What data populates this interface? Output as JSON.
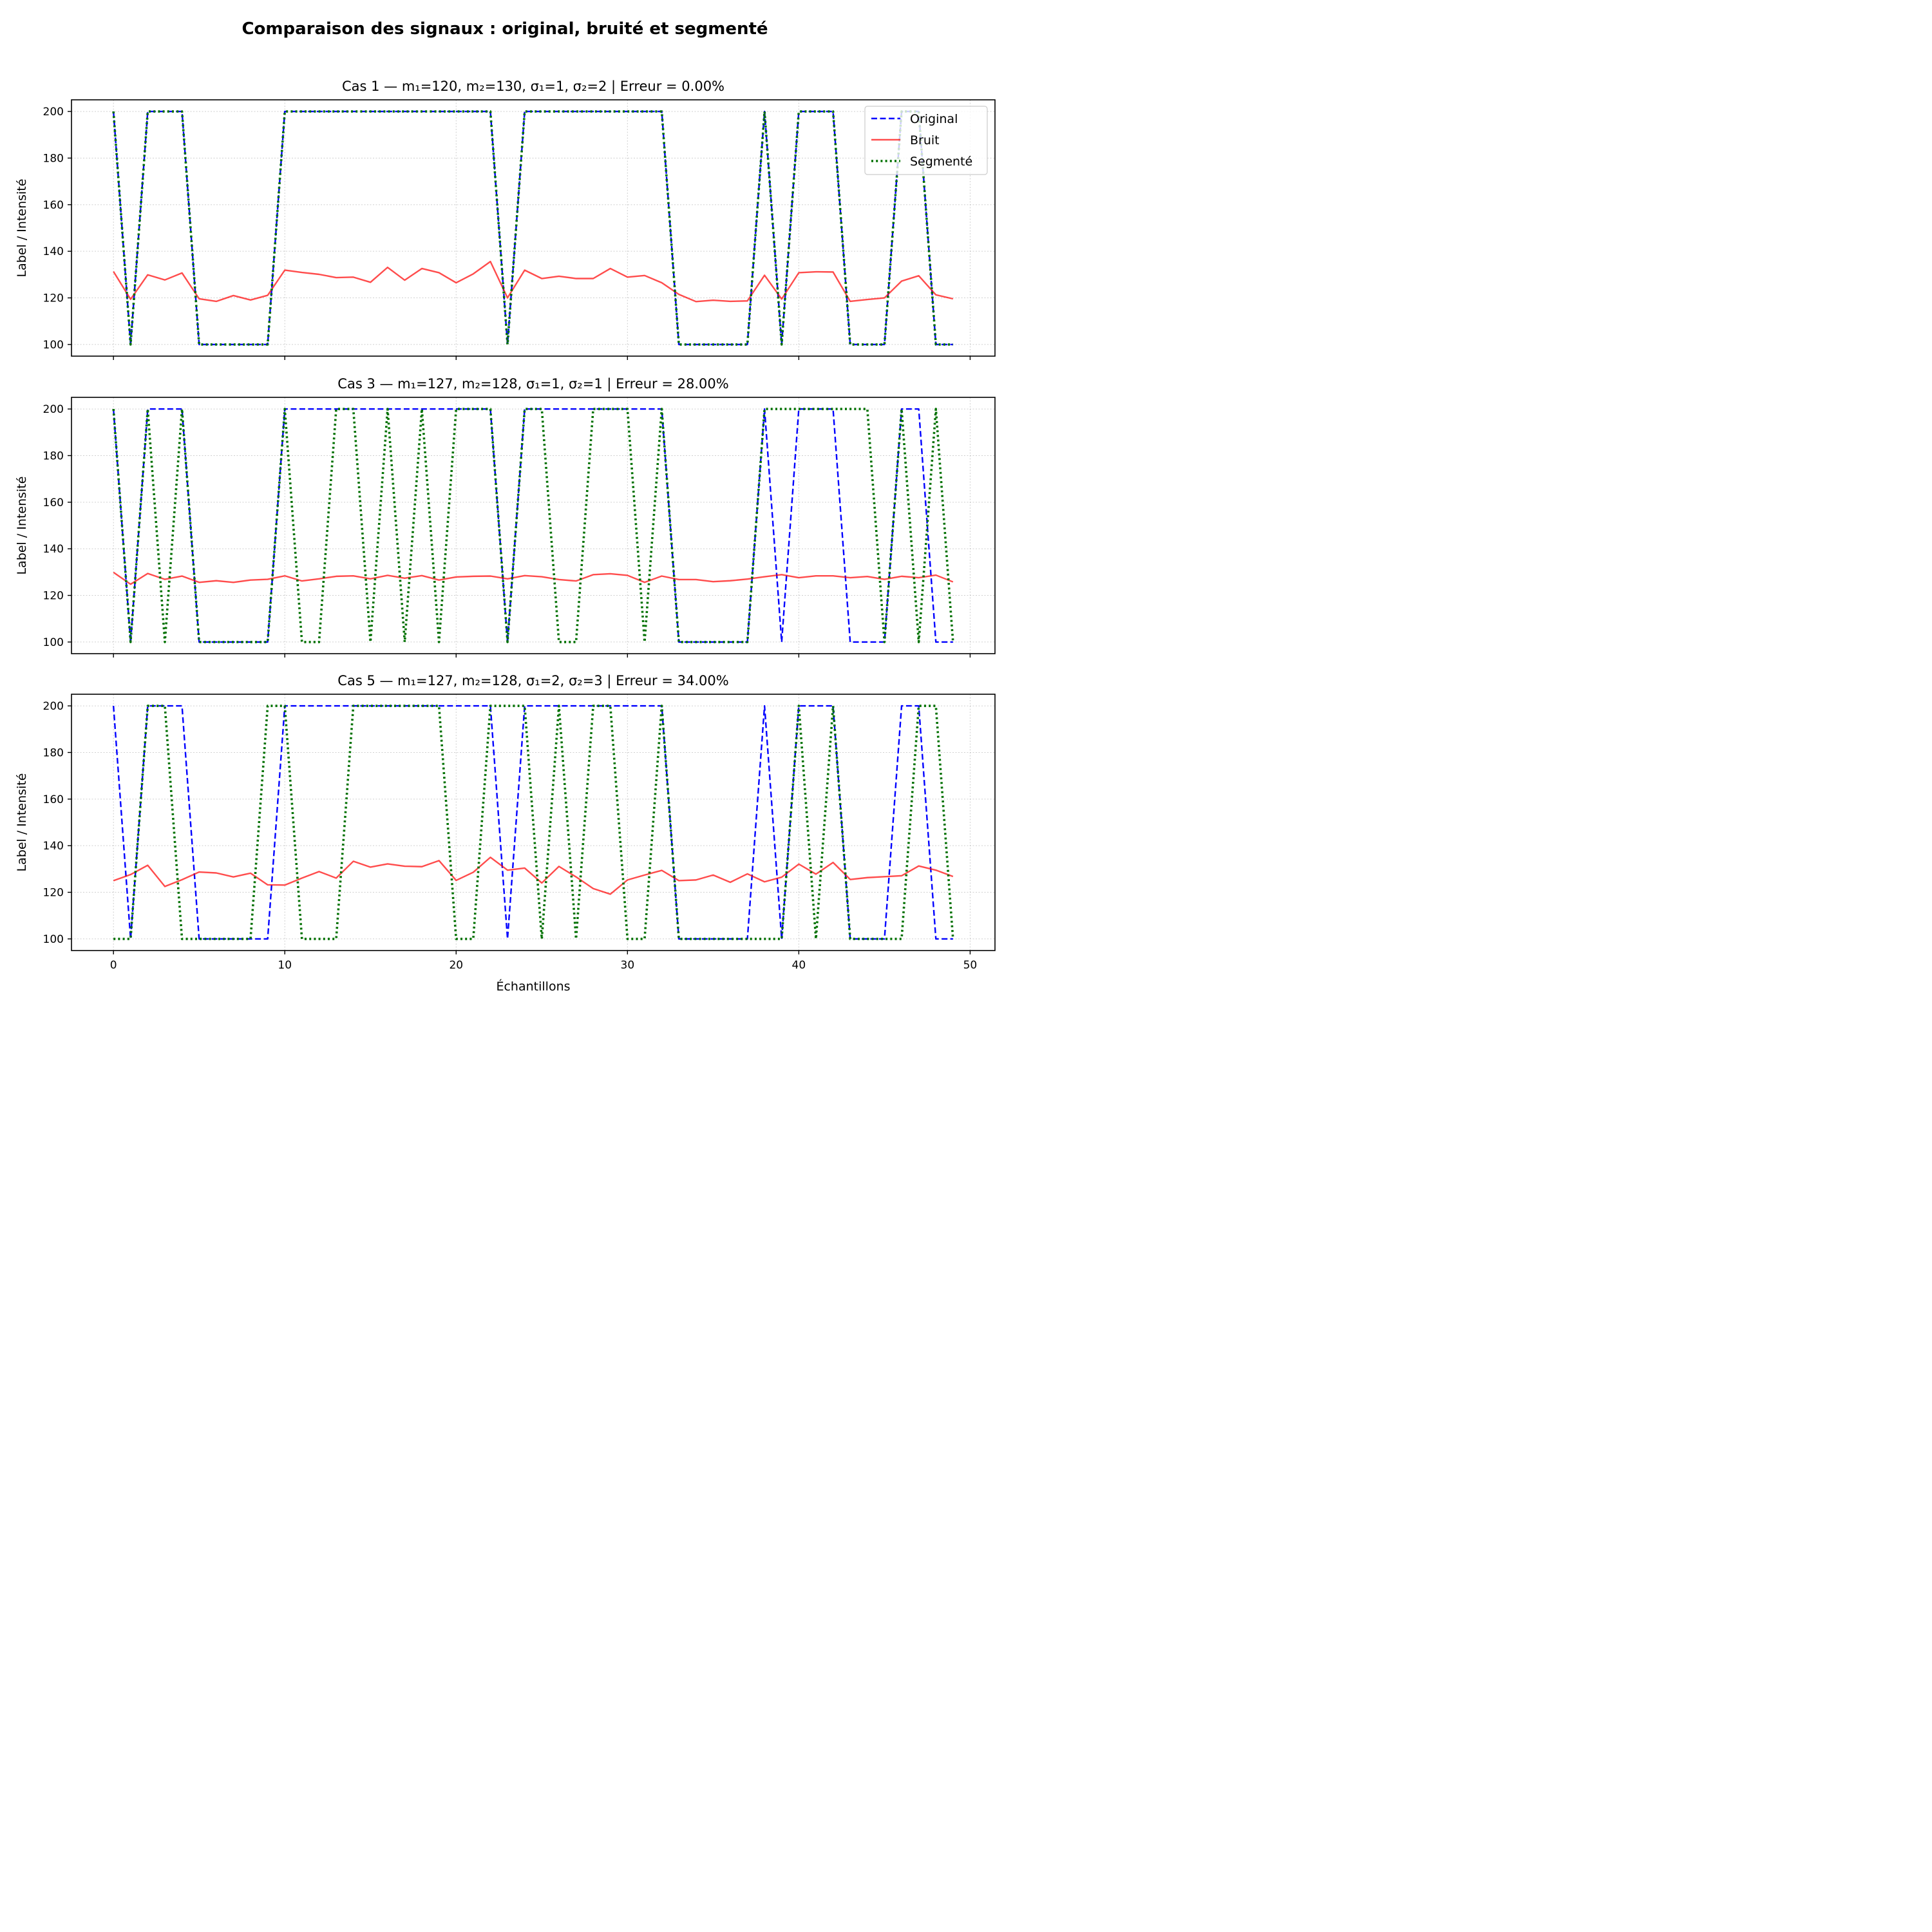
{
  "figure": {
    "title": "Comparaison des signaux : original, bruité et segmenté",
    "xlabel": "Échantillons"
  },
  "colors": {
    "original": "#0000ff",
    "bruit": "#ff0000",
    "segmente": "#007000",
    "grid": "#b0b0b0"
  },
  "chart_data": [
    {
      "type": "line",
      "title": "Cas 1 — m₁=120, m₂=130, σ₁=1, σ₂=2  |  Erreur = 0.00%",
      "xlabel": "",
      "ylabel": "Label / Intensité",
      "xlim": [
        -2.45,
        51.45
      ],
      "ylim": [
        95,
        205
      ],
      "xticks": [
        0,
        10,
        20,
        30,
        40,
        50
      ],
      "yticks": [
        100,
        120,
        140,
        160,
        180,
        200
      ],
      "grid": true,
      "legend": "top-right",
      "x": [
        0,
        1,
        2,
        3,
        4,
        5,
        6,
        7,
        8,
        9,
        10,
        11,
        12,
        13,
        14,
        15,
        16,
        17,
        18,
        19,
        20,
        21,
        22,
        23,
        24,
        25,
        26,
        27,
        28,
        29,
        30,
        31,
        32,
        33,
        34,
        35,
        36,
        37,
        38,
        39,
        40,
        41,
        42,
        43,
        44,
        45,
        46,
        47,
        48,
        49
      ],
      "series": [
        {
          "name": "Original",
          "style": "dashed",
          "values": [
            200,
            100,
            200,
            200,
            200,
            100,
            100,
            100,
            100,
            100,
            200,
            200,
            200,
            200,
            200,
            200,
            200,
            200,
            200,
            200,
            200,
            200,
            200,
            100,
            200,
            200,
            200,
            200,
            200,
            200,
            200,
            200,
            200,
            100,
            100,
            100,
            100,
            100,
            200,
            100,
            200,
            200,
            200,
            100,
            100,
            100,
            200,
            200,
            100,
            100
          ]
        },
        {
          "name": "Bruit",
          "style": "solid",
          "values": [
            131.3,
            119.4,
            129.9,
            127.7,
            130.7,
            119.6,
            118.5,
            121.0,
            119.1,
            121.1,
            131.9,
            130.9,
            130.1,
            128.7,
            128.9,
            126.7,
            133.1,
            127.6,
            132.6,
            130.8,
            126.5,
            130.3,
            135.6,
            120.0,
            131.9,
            128.3,
            129.3,
            128.3,
            128.3,
            132.6,
            128.9,
            129.6,
            126.5,
            121.5,
            118.4,
            119.0,
            118.5,
            118.7,
            129.7,
            119.5,
            130.8,
            131.2,
            131.1,
            118.5,
            119.3,
            120.0,
            127.2,
            129.5,
            121.3,
            119.6
          ]
        },
        {
          "name": "Segmenté",
          "style": "dotted",
          "values": [
            200,
            100,
            200,
            200,
            200,
            100,
            100,
            100,
            100,
            100,
            200,
            200,
            200,
            200,
            200,
            200,
            200,
            200,
            200,
            200,
            200,
            200,
            200,
            100,
            200,
            200,
            200,
            200,
            200,
            200,
            200,
            200,
            200,
            100,
            100,
            100,
            100,
            100,
            200,
            100,
            200,
            200,
            200,
            100,
            100,
            100,
            200,
            200,
            100,
            100
          ]
        }
      ]
    },
    {
      "type": "line",
      "title": "Cas 3 — m₁=127, m₂=128, σ₁=1, σ₂=1  |  Erreur = 28.00%",
      "xlabel": "",
      "ylabel": "Label / Intensité",
      "xlim": [
        -2.45,
        51.45
      ],
      "ylim": [
        95,
        205
      ],
      "xticks": [
        0,
        10,
        20,
        30,
        40,
        50
      ],
      "yticks": [
        100,
        120,
        140,
        160,
        180,
        200
      ],
      "grid": true,
      "x": [
        0,
        1,
        2,
        3,
        4,
        5,
        6,
        7,
        8,
        9,
        10,
        11,
        12,
        13,
        14,
        15,
        16,
        17,
        18,
        19,
        20,
        21,
        22,
        23,
        24,
        25,
        26,
        27,
        28,
        29,
        30,
        31,
        32,
        33,
        34,
        35,
        36,
        37,
        38,
        39,
        40,
        41,
        42,
        43,
        44,
        45,
        46,
        47,
        48,
        49
      ],
      "series": [
        {
          "name": "Original",
          "style": "dashed",
          "values": [
            200,
            100,
            200,
            200,
            200,
            100,
            100,
            100,
            100,
            100,
            200,
            200,
            200,
            200,
            200,
            200,
            200,
            200,
            200,
            200,
            200,
            200,
            200,
            100,
            200,
            200,
            200,
            200,
            200,
            200,
            200,
            200,
            200,
            100,
            100,
            100,
            100,
            100,
            200,
            100,
            200,
            200,
            200,
            100,
            100,
            100,
            200,
            200,
            100,
            100
          ]
        },
        {
          "name": "Bruit",
          "style": "solid",
          "values": [
            129.9,
            124.8,
            129.4,
            126.9,
            128.3,
            125.6,
            126.3,
            125.6,
            126.6,
            126.9,
            128.4,
            126.2,
            127.1,
            128.2,
            128.4,
            127.1,
            128.6,
            127.4,
            128.5,
            126.6,
            127.9,
            128.2,
            128.3,
            127.1,
            128.5,
            128.0,
            126.8,
            126.2,
            128.9,
            129.3,
            128.6,
            125.6,
            128.3,
            126.8,
            126.8,
            125.9,
            126.3,
            127.0,
            128.0,
            128.9,
            127.6,
            128.4,
            128.4,
            127.6,
            128.1,
            126.9,
            128.2,
            127.6,
            128.7,
            125.8
          ]
        },
        {
          "name": "Segmenté",
          "style": "dotted",
          "values": [
            200,
            100,
            200,
            100,
            200,
            100,
            100,
            100,
            100,
            100,
            200,
            100,
            100,
            200,
            200,
            100,
            200,
            100,
            200,
            100,
            200,
            200,
            200,
            100,
            200,
            200,
            100,
            100,
            200,
            200,
            200,
            100,
            200,
            100,
            100,
            100,
            100,
            100,
            200,
            200,
            200,
            200,
            200,
            200,
            200,
            100,
            200,
            100,
            200,
            100
          ]
        }
      ]
    },
    {
      "type": "line",
      "title": "Cas 5 — m₁=127, m₂=128, σ₁=2, σ₂=3  |  Erreur = 34.00%",
      "xlabel": "Échantillons",
      "ylabel": "Label / Intensité",
      "xlim": [
        -2.45,
        51.45
      ],
      "ylim": [
        95,
        205
      ],
      "xticks": [
        0,
        10,
        20,
        30,
        40,
        50
      ],
      "yticks": [
        100,
        120,
        140,
        160,
        180,
        200
      ],
      "grid": true,
      "x": [
        0,
        1,
        2,
        3,
        4,
        5,
        6,
        7,
        8,
        9,
        10,
        11,
        12,
        13,
        14,
        15,
        16,
        17,
        18,
        19,
        20,
        21,
        22,
        23,
        24,
        25,
        26,
        27,
        28,
        29,
        30,
        31,
        32,
        33,
        34,
        35,
        36,
        37,
        38,
        39,
        40,
        41,
        42,
        43,
        44,
        45,
        46,
        47,
        48,
        49
      ],
      "series": [
        {
          "name": "Original",
          "style": "dashed",
          "values": [
            200,
            100,
            200,
            200,
            200,
            100,
            100,
            100,
            100,
            100,
            200,
            200,
            200,
            200,
            200,
            200,
            200,
            200,
            200,
            200,
            200,
            200,
            200,
            100,
            200,
            200,
            200,
            200,
            200,
            200,
            200,
            200,
            200,
            100,
            100,
            100,
            100,
            100,
            200,
            100,
            200,
            200,
            200,
            100,
            100,
            100,
            200,
            200,
            100,
            100
          ]
        },
        {
          "name": "Bruit",
          "style": "solid",
          "values": [
            125.0,
            127.6,
            131.6,
            122.5,
            125.4,
            128.7,
            128.3,
            126.6,
            128.2,
            123.2,
            123.1,
            126.1,
            128.9,
            126.1,
            133.3,
            130.8,
            132.2,
            131.2,
            131.0,
            133.6,
            125.1,
            128.6,
            135.0,
            129.5,
            130.4,
            124.0,
            131.1,
            126.6,
            121.6,
            119.2,
            125.3,
            127.4,
            129.4,
            125.0,
            125.3,
            127.4,
            124.3,
            127.9,
            124.5,
            126.5,
            132.1,
            127.8,
            132.8,
            125.5,
            126.3,
            126.7,
            127.1,
            131.3,
            129.5,
            126.8
          ]
        },
        {
          "name": "Segmenté",
          "style": "dotted",
          "values": [
            100,
            100,
            200,
            200,
            100,
            100,
            100,
            100,
            100,
            200,
            200,
            100,
            100,
            100,
            200,
            200,
            200,
            200,
            200,
            200,
            100,
            100,
            200,
            200,
            200,
            100,
            200,
            100,
            200,
            200,
            100,
            100,
            200,
            100,
            100,
            100,
            100,
            100,
            100,
            100,
            200,
            100,
            200,
            100,
            100,
            100,
            100,
            200,
            200,
            100
          ]
        }
      ]
    }
  ]
}
